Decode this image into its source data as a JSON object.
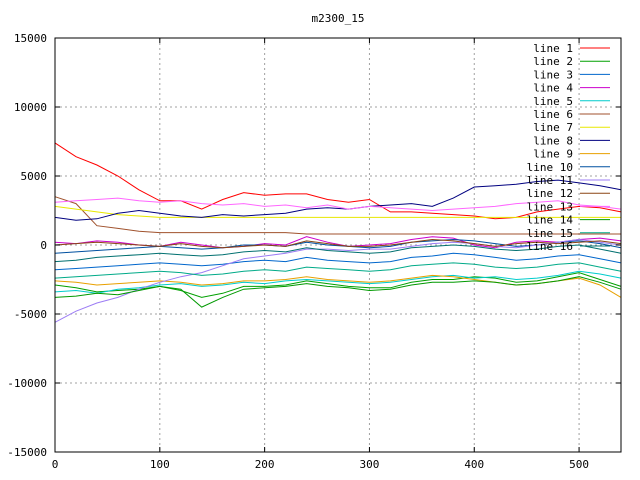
{
  "chart_data": {
    "type": "line",
    "title": "m2300_15",
    "xlabel": "",
    "ylabel": "",
    "xlim": [
      0,
      540
    ],
    "ylim": [
      -15000,
      15000
    ],
    "x_ticks": [
      0,
      100,
      200,
      300,
      400,
      500
    ],
    "y_ticks": [
      -15000,
      -10000,
      -5000,
      0,
      5000,
      10000,
      15000
    ],
    "grid": true,
    "legend_position": "top-right",
    "x": [
      0,
      20,
      40,
      60,
      80,
      100,
      120,
      140,
      160,
      180,
      200,
      220,
      240,
      260,
      280,
      300,
      320,
      340,
      360,
      380,
      400,
      420,
      440,
      460,
      480,
      500,
      520,
      540
    ],
    "series": [
      {
        "name": "line 1",
        "color": "#ff0000",
        "values": [
          7400,
          6400,
          5800,
          5000,
          4000,
          3200,
          3200,
          2600,
          3300,
          3800,
          3600,
          3700,
          3700,
          3300,
          3100,
          3300,
          2400,
          2400,
          2300,
          2200,
          2100,
          1900,
          2000,
          2400,
          2600,
          2800,
          2700,
          2400
        ]
      },
      {
        "name": "line 2",
        "color": "#00a000",
        "values": [
          -2900,
          -3100,
          -3400,
          -3300,
          -3200,
          -3000,
          -3300,
          -3800,
          -3500,
          -3000,
          -3000,
          -2900,
          -2600,
          -2800,
          -3000,
          -3100,
          -3100,
          -2700,
          -2500,
          -2500,
          -2300,
          -2400,
          -2700,
          -2600,
          -2300,
          -2000,
          -2500,
          -3000
        ]
      },
      {
        "name": "line 3",
        "color": "#0066cc",
        "values": [
          -1800,
          -1700,
          -1600,
          -1500,
          -1400,
          -1300,
          -1400,
          -1500,
          -1400,
          -1200,
          -1100,
          -1200,
          -900,
          -1100,
          -1200,
          -1300,
          -1200,
          -900,
          -800,
          -600,
          -700,
          -900,
          -1100,
          -1000,
          -800,
          -700,
          -1000,
          -1300
        ]
      },
      {
        "name": "line 4",
        "color": "#cc00cc",
        "values": [
          200,
          100,
          300,
          200,
          0,
          -100,
          200,
          0,
          -200,
          -100,
          100,
          0,
          600,
          200,
          -100,
          0,
          100,
          400,
          600,
          500,
          0,
          -200,
          200,
          300,
          200,
          400,
          500,
          300
        ]
      },
      {
        "name": "line 5",
        "color": "#00cccc",
        "values": [
          -3400,
          -3300,
          -3500,
          -3200,
          -3100,
          -2900,
          -2800,
          -3000,
          -2900,
          -2700,
          -2800,
          -2600,
          -2500,
          -2600,
          -2700,
          -2800,
          -2700,
          -2500,
          -2300,
          -2200,
          -2400,
          -2300,
          -2500,
          -2400,
          -2200,
          -1900,
          -2100,
          -2400
        ]
      },
      {
        "name": "line 6",
        "color": "#a0522d",
        "values": [
          3500,
          3000,
          1400,
          1200,
          1000,
          900,
          900,
          900,
          900,
          900,
          900,
          900,
          800,
          800,
          800,
          800,
          800,
          800,
          800,
          800,
          800,
          800,
          800,
          800,
          800,
          800,
          800,
          800
        ]
      },
      {
        "name": "line 7",
        "color": "#e8e800",
        "values": [
          2800,
          2600,
          2400,
          2200,
          2100,
          2000,
          2000,
          2000,
          2000,
          2000,
          2000,
          2000,
          2000,
          2000,
          2000,
          2000,
          2000,
          2000,
          2000,
          2000,
          2000,
          2000,
          2000,
          2000,
          2000,
          2000,
          2000,
          2000
        ]
      },
      {
        "name": "line 8",
        "color": "#000080",
        "values": [
          2000,
          1800,
          1900,
          2300,
          2500,
          2300,
          2100,
          2000,
          2200,
          2100,
          2200,
          2300,
          2600,
          2700,
          2600,
          2800,
          2900,
          3000,
          2800,
          3400,
          4200,
          4300,
          4400,
          4600,
          4700,
          4500,
          4300,
          4000
        ]
      },
      {
        "name": "line 9",
        "color": "#e8a000",
        "values": [
          -2600,
          -2700,
          -2900,
          -2800,
          -2700,
          -2600,
          -2700,
          -2900,
          -2800,
          -2600,
          -2600,
          -2500,
          -2300,
          -2500,
          -2600,
          -2700,
          -2600,
          -2400,
          -2200,
          -2300,
          -2500,
          -2700,
          -2900,
          -2800,
          -2600,
          -2400,
          -2900,
          -3800
        ]
      },
      {
        "name": "line 10",
        "color": "#0050a0",
        "values": [
          -600,
          -500,
          -400,
          -300,
          -200,
          -100,
          -200,
          -300,
          -200,
          0,
          0,
          -100,
          200,
          0,
          -100,
          -200,
          -100,
          200,
          300,
          400,
          300,
          100,
          -100,
          0,
          200,
          300,
          100,
          -200
        ]
      },
      {
        "name": "line 11",
        "color": "#9c7cf4",
        "values": [
          -5600,
          -4800,
          -4200,
          -3800,
          -3200,
          -2700,
          -2300,
          -2000,
          -1500,
          -1000,
          -800,
          -600,
          -300,
          -300,
          -400,
          -300,
          -300,
          -100,
          100,
          200,
          100,
          -100,
          -200,
          0,
          200,
          400,
          200,
          0
        ]
      },
      {
        "name": "line 12",
        "color": "#8b4513",
        "values": [
          0,
          100,
          200,
          100,
          0,
          -100,
          100,
          -100,
          -200,
          -100,
          0,
          -100,
          300,
          100,
          -100,
          -100,
          0,
          200,
          400,
          300,
          100,
          -100,
          100,
          200,
          100,
          200,
          300,
          100
        ]
      },
      {
        "name": "line 13",
        "color": "#ff66ff",
        "values": [
          3100,
          3200,
          3300,
          3400,
          3200,
          3100,
          3200,
          3000,
          2900,
          3000,
          2800,
          2900,
          2700,
          2900,
          2600,
          2800,
          2700,
          2600,
          2500,
          2600,
          2700,
          2800,
          3000,
          3100,
          3200,
          2900,
          2800,
          2600
        ]
      },
      {
        "name": "line 14",
        "color": "#009900",
        "values": [
          -3800,
          -3700,
          -3500,
          -3600,
          -3300,
          -3000,
          -3200,
          -4500,
          -3800,
          -3200,
          -3100,
          -3000,
          -2800,
          -3000,
          -3100,
          -3300,
          -3200,
          -2900,
          -2700,
          -2700,
          -2600,
          -2700,
          -2900,
          -2800,
          -2600,
          -2300,
          -2700,
          -3200
        ]
      },
      {
        "name": "line 15",
        "color": "#00aa88",
        "values": [
          -2400,
          -2300,
          -2200,
          -2100,
          -2000,
          -1900,
          -2000,
          -2200,
          -2100,
          -1900,
          -1800,
          -1900,
          -1600,
          -1700,
          -1800,
          -1900,
          -1800,
          -1500,
          -1400,
          -1300,
          -1400,
          -1600,
          -1700,
          -1600,
          -1400,
          -1300,
          -1600,
          -1900
        ]
      },
      {
        "name": "line 16",
        "color": "#007070",
        "values": [
          -1200,
          -1100,
          -900,
          -800,
          -700,
          -600,
          -700,
          -800,
          -700,
          -500,
          -400,
          -500,
          -200,
          -400,
          -500,
          -600,
          -500,
          -200,
          -100,
          0,
          -100,
          -300,
          -400,
          -300,
          -100,
          0,
          -300,
          -600
        ]
      }
    ]
  }
}
